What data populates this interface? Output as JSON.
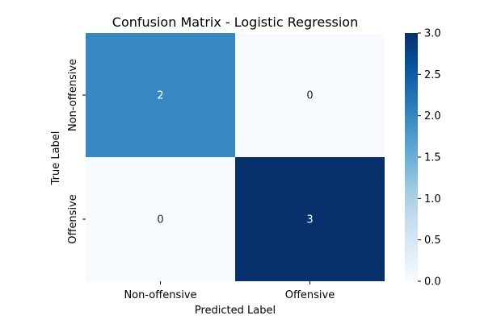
{
  "chart_data": {
    "type": "heatmap",
    "title": "Confusion Matrix - Logistic Regression",
    "xlabel": "Predicted Label",
    "ylabel": "True Label",
    "x_categories": [
      "Non-offensive",
      "Offensive"
    ],
    "y_categories": [
      "Non-offensive",
      "Offensive"
    ],
    "values": [
      [
        2,
        0
      ],
      [
        0,
        3
      ]
    ],
    "colorbar": {
      "min": 0.0,
      "max": 3.0,
      "ticks": [
        0.0,
        0.5,
        1.0,
        1.5,
        2.0,
        2.5,
        3.0
      ],
      "tick_labels": [
        "0.0",
        "0.5",
        "1.0",
        "1.5",
        "2.0",
        "2.5",
        "3.0"
      ],
      "colormap": "Blues"
    },
    "annotated": true,
    "grid": false
  }
}
